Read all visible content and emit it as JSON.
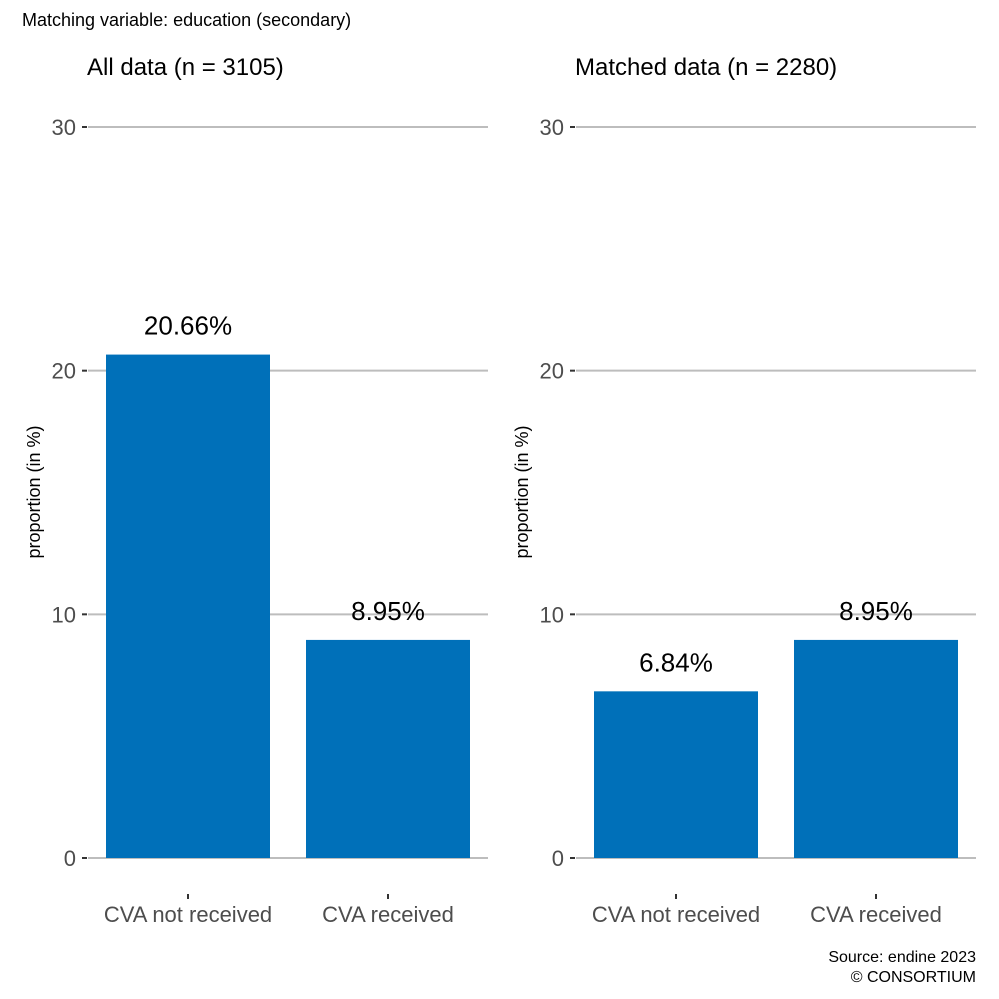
{
  "header": {
    "subtitle": "Matching variable: education (secondary)"
  },
  "footer": {
    "source": "Source: endine 2023",
    "copyright": "© CONSORTIUM"
  },
  "colors": {
    "bar": "#0070b9",
    "grid": "#bdbdbd",
    "tick_text": "#4d4d4d",
    "text": "#000000"
  },
  "chart_data": [
    {
      "type": "bar",
      "title": "All data (n = 3105)",
      "ylabel": "proportion (in %)",
      "xlabel": "",
      "categories": [
        "CVA not received",
        "CVA received"
      ],
      "values": [
        20.66,
        8.95
      ],
      "labels": [
        "20.66%",
        "8.95%"
      ],
      "ylim": [
        0,
        30
      ],
      "yticks": [
        0,
        10,
        20,
        30
      ],
      "grid": "horizontal"
    },
    {
      "type": "bar",
      "title": "Matched data (n = 2280)",
      "ylabel": "proportion (in %)",
      "xlabel": "",
      "categories": [
        "CVA not received",
        "CVA received"
      ],
      "values": [
        6.84,
        8.95
      ],
      "labels": [
        "6.84%",
        "8.95%"
      ],
      "ylim": [
        0,
        30
      ],
      "yticks": [
        0,
        10,
        20,
        30
      ],
      "grid": "horizontal"
    }
  ]
}
